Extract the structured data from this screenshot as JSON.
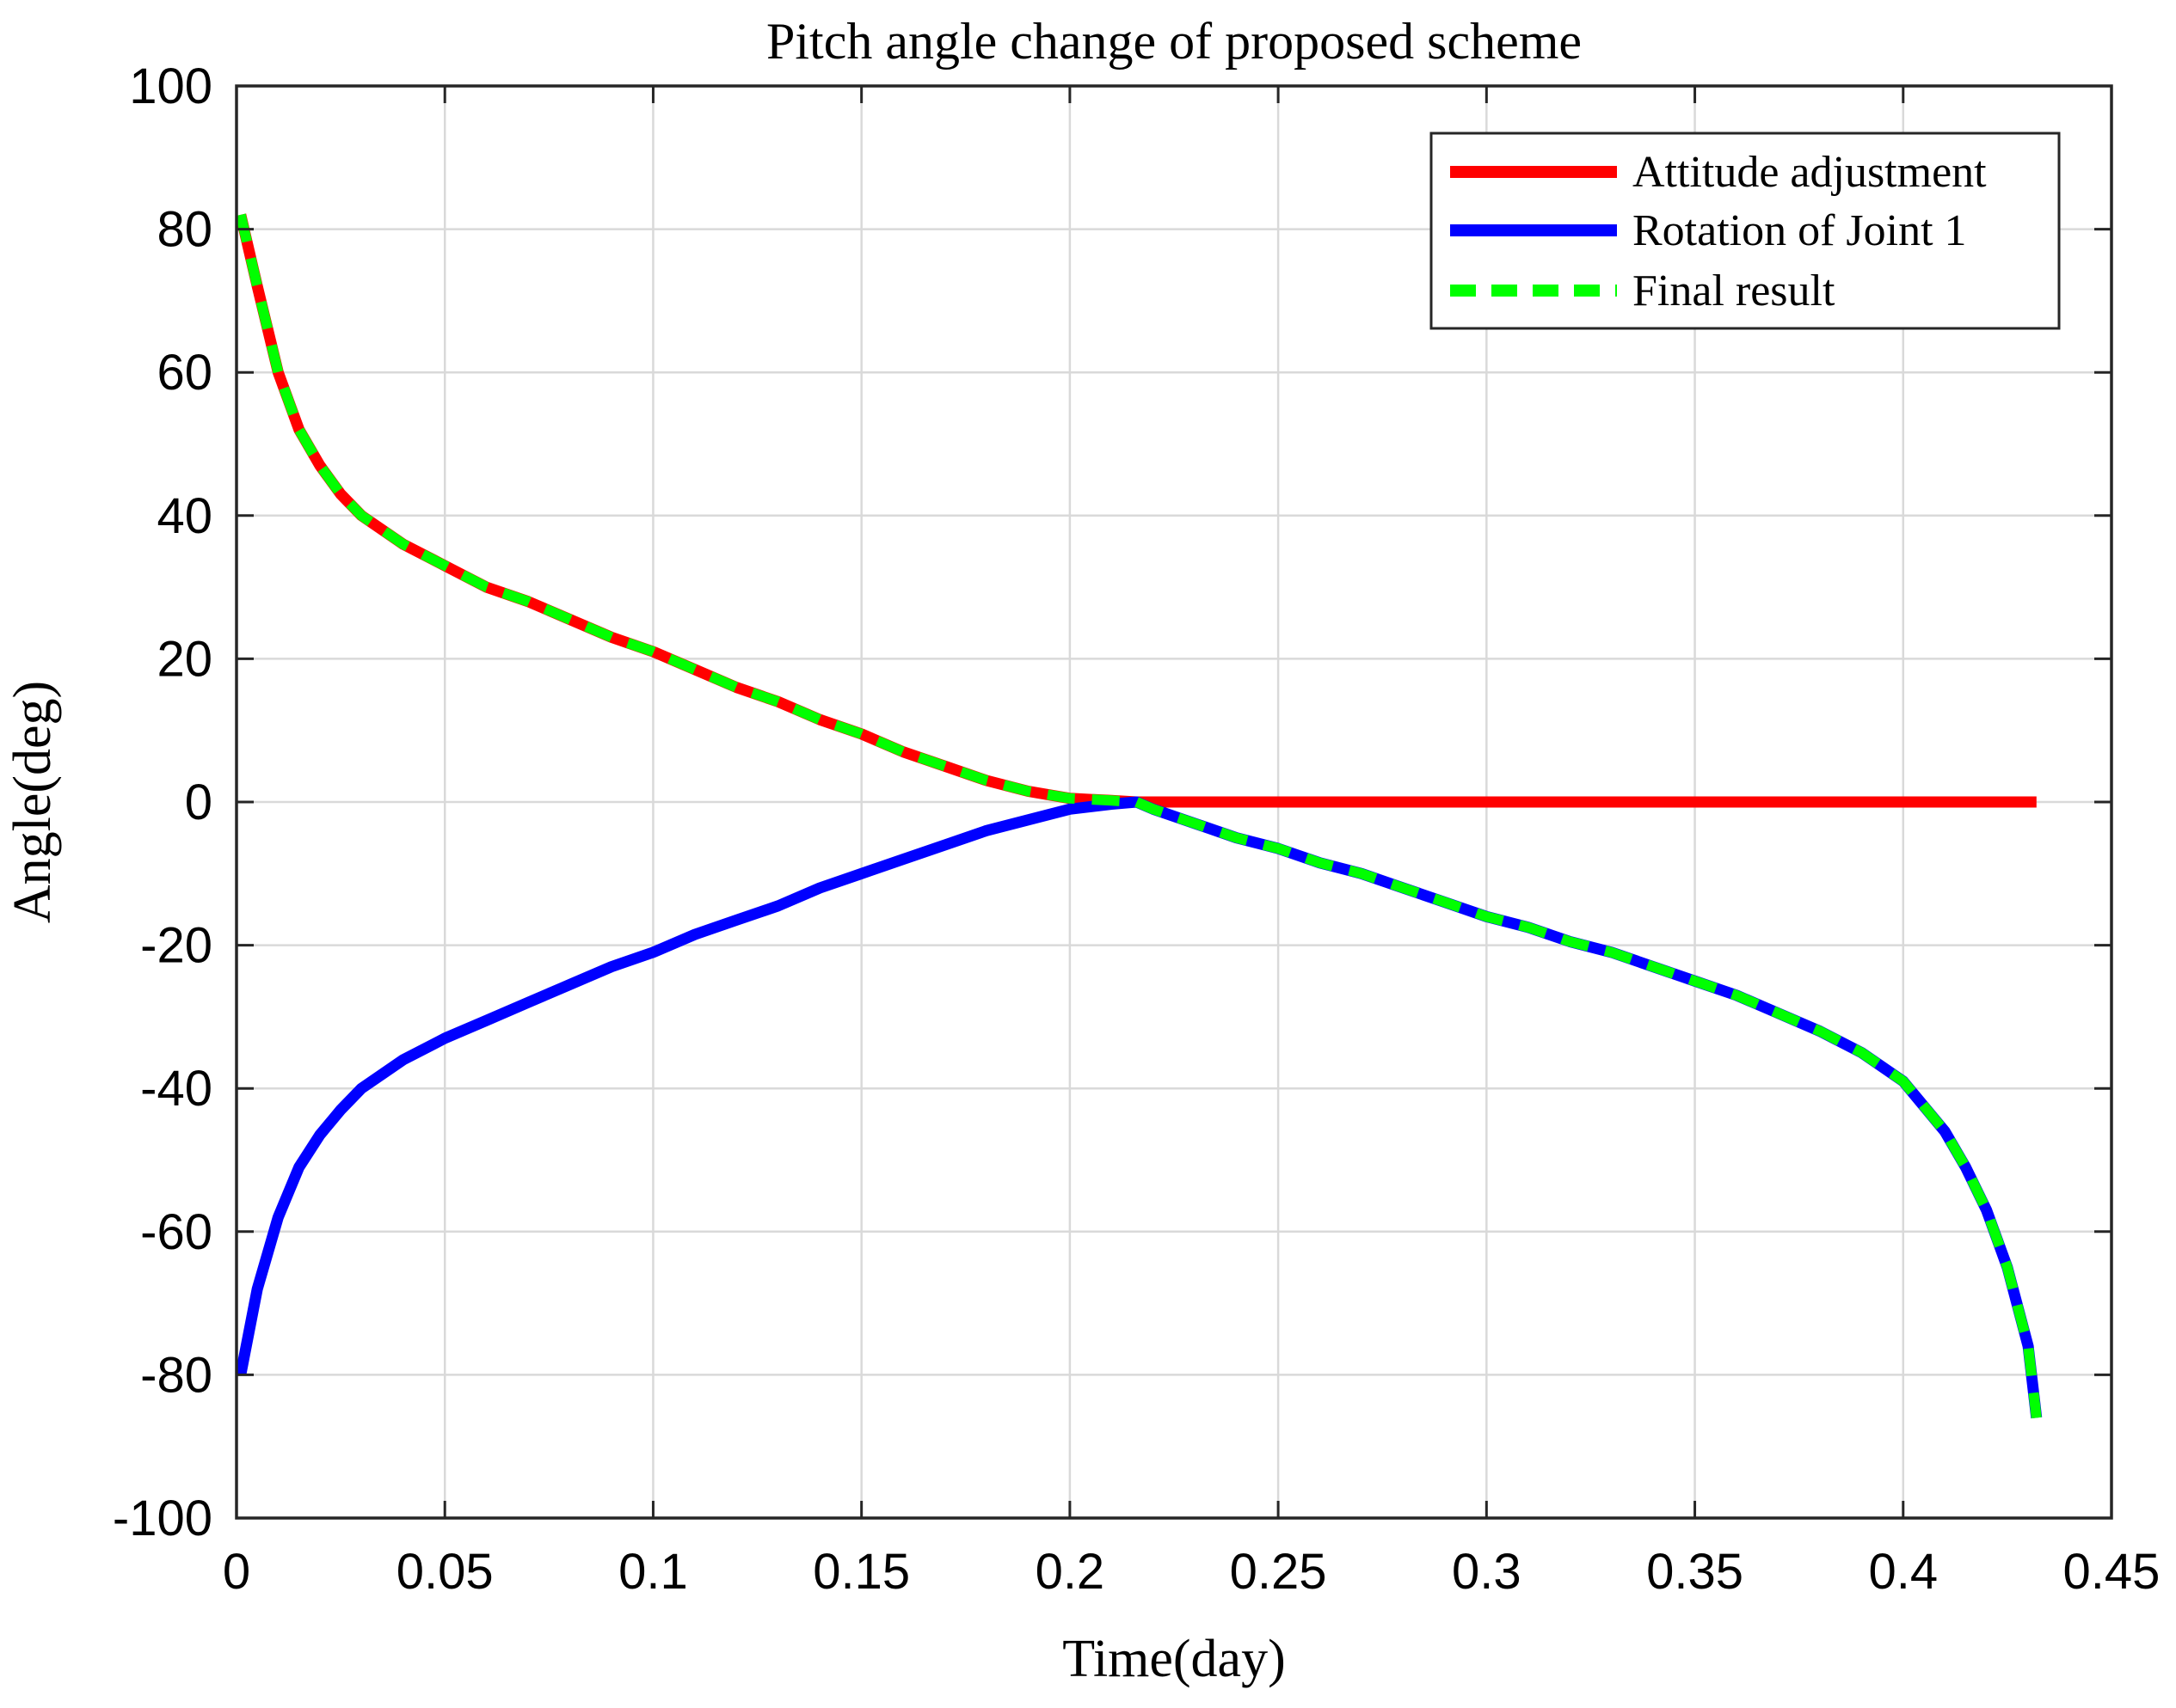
{
  "chart_data": {
    "type": "line",
    "title": "Pitch angle change of proposed scheme",
    "xlabel": "Time(day)",
    "ylabel": "Angle(deg)",
    "xlim": [
      0,
      0.45
    ],
    "ylim": [
      -100,
      100
    ],
    "xticks": [
      0,
      0.05,
      0.1,
      0.15,
      0.2,
      0.25,
      0.3,
      0.35,
      0.4,
      0.45
    ],
    "xtick_labels": [
      "0",
      "0.05",
      "0.1",
      "0.15",
      "0.2",
      "0.25",
      "0.3",
      "0.35",
      "0.4",
      "0.45"
    ],
    "yticks": [
      100,
      80,
      60,
      40,
      20,
      0,
      -20,
      -40,
      -60,
      -80,
      -100
    ],
    "ytick_labels": [
      "100",
      "80",
      "60",
      "40",
      "20",
      "0",
      "-20",
      "-40",
      "-60",
      "-80",
      "-100"
    ],
    "grid": true,
    "legend_position": "top-right",
    "series": [
      {
        "name": "Attitude adjustment",
        "color": "#ff0000",
        "style": "solid",
        "x": [
          0.001,
          0.005,
          0.01,
          0.015,
          0.02,
          0.025,
          0.03,
          0.04,
          0.05,
          0.06,
          0.07,
          0.08,
          0.09,
          0.1,
          0.11,
          0.12,
          0.13,
          0.14,
          0.15,
          0.16,
          0.17,
          0.18,
          0.19,
          0.2,
          0.21,
          0.216,
          0.25,
          0.3,
          0.35,
          0.4,
          0.432
        ],
        "y": [
          82,
          72,
          60,
          52,
          47,
          43,
          40,
          36,
          33,
          30,
          28,
          25.5,
          23,
          21,
          18.5,
          16,
          14,
          11.5,
          9.5,
          7,
          5,
          3,
          1.5,
          0.5,
          0.2,
          0,
          0,
          0,
          0,
          0,
          0
        ]
      },
      {
        "name": "Rotation of Joint 1",
        "color": "#0000ff",
        "style": "solid",
        "x": [
          0.001,
          0.005,
          0.01,
          0.015,
          0.02,
          0.025,
          0.03,
          0.04,
          0.05,
          0.06,
          0.07,
          0.08,
          0.09,
          0.1,
          0.11,
          0.12,
          0.13,
          0.14,
          0.15,
          0.16,
          0.17,
          0.18,
          0.19,
          0.2,
          0.21,
          0.216,
          0.22,
          0.23,
          0.24,
          0.25,
          0.26,
          0.27,
          0.28,
          0.29,
          0.3,
          0.31,
          0.32,
          0.33,
          0.34,
          0.35,
          0.36,
          0.37,
          0.38,
          0.39,
          0.4,
          0.41,
          0.415,
          0.42,
          0.425,
          0.43,
          0.432
        ],
        "y": [
          -80,
          -68,
          -58,
          -51,
          -46.5,
          -43,
          -40,
          -36,
          -33,
          -30.5,
          -28,
          -25.5,
          -23,
          -21,
          -18.5,
          -16.5,
          -14.5,
          -12,
          -10,
          -8,
          -6,
          -4,
          -2.5,
          -1,
          -0.3,
          0,
          -1,
          -3,
          -5,
          -6.5,
          -8.5,
          -10,
          -12,
          -14,
          -16,
          -17.5,
          -19.5,
          -21,
          -23,
          -25,
          -27,
          -29.5,
          -32,
          -35,
          -39,
          -46,
          -51,
          -57,
          -65,
          -76,
          -86
        ]
      },
      {
        "name": "Final result",
        "color": "#00ff00",
        "style": "dashed",
        "x": [
          0.001,
          0.005,
          0.01,
          0.015,
          0.02,
          0.025,
          0.03,
          0.04,
          0.05,
          0.06,
          0.07,
          0.08,
          0.09,
          0.1,
          0.11,
          0.12,
          0.13,
          0.14,
          0.15,
          0.16,
          0.17,
          0.18,
          0.19,
          0.2,
          0.21,
          0.216,
          0.22,
          0.23,
          0.24,
          0.25,
          0.26,
          0.27,
          0.28,
          0.29,
          0.3,
          0.31,
          0.32,
          0.33,
          0.34,
          0.35,
          0.36,
          0.37,
          0.38,
          0.39,
          0.4,
          0.41,
          0.415,
          0.42,
          0.425,
          0.43,
          0.432
        ],
        "y": [
          82,
          72,
          60,
          52,
          47,
          43,
          40,
          36,
          33,
          30,
          28,
          25.5,
          23,
          21,
          18.5,
          16,
          14,
          11.5,
          9.5,
          7,
          5,
          3,
          1.5,
          0.5,
          0.2,
          0,
          -1,
          -3,
          -5,
          -6.5,
          -8.5,
          -10,
          -12,
          -14,
          -16,
          -17.5,
          -19.5,
          -21,
          -23,
          -25,
          -27,
          -29.5,
          -32,
          -35,
          -39,
          -46,
          -51,
          -57,
          -65,
          -76,
          -86
        ]
      }
    ]
  }
}
